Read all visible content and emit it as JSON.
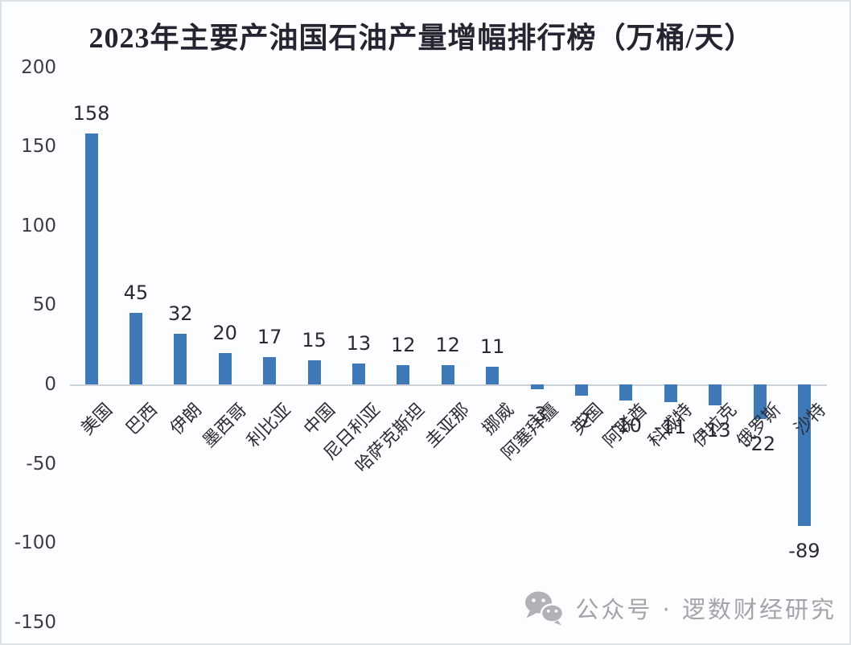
{
  "page": {
    "background": "#fbfdfe",
    "watermark": {
      "icon": "wechat-icon",
      "text": "公众号 · 逻数财经研究",
      "color": "#a4a4a8"
    }
  },
  "chart_data": {
    "type": "bar",
    "title": "2023年主要产油国石油产量增幅排行榜（万桶/天）",
    "categories": [
      "美国",
      "巴西",
      "伊朗",
      "墨西哥",
      "利比亚",
      "中国",
      "尼日利亚",
      "哈萨克斯坦",
      "圭亚那",
      "挪威",
      "阿塞拜疆",
      "英国",
      "阿联酋",
      "科威特",
      "伊拉克",
      "俄罗斯",
      "沙特"
    ],
    "values": [
      158,
      45,
      32,
      20,
      17,
      15,
      13,
      12,
      12,
      11,
      -3,
      -7,
      -10,
      -11,
      -13,
      -22,
      -89
    ],
    "value_labels": true,
    "yticks": [
      200,
      150,
      100,
      50,
      0,
      -50,
      -100,
      -150
    ],
    "ylim": [
      -150,
      200
    ],
    "xlabel": "",
    "ylabel": "",
    "grid": false,
    "legend": false,
    "bar_color": "#3e78b6",
    "label_color": "#2c2937",
    "axis_line_color": "#ccd2d7"
  }
}
